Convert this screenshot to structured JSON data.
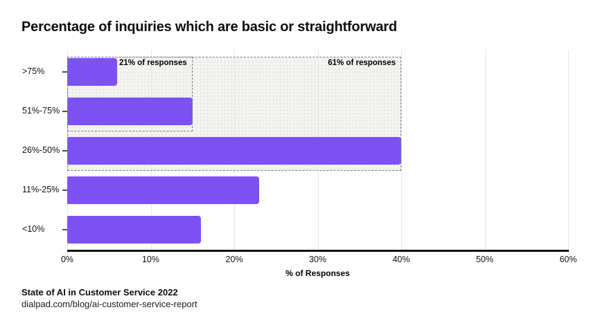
{
  "chart_data": {
    "type": "bar",
    "orientation": "horizontal",
    "title": "Percentage of inquiries which are basic or straightforward",
    "categories": [
      ">75%",
      "51%-75%",
      "26%-50%",
      "11%-25%",
      "<10%"
    ],
    "values": [
      6,
      15,
      40,
      23,
      16
    ],
    "xlabel": "% of Responses",
    "ylabel": "",
    "xlim": [
      0,
      60
    ],
    "x_tick_labels": [
      "0%",
      "10%",
      "20%",
      "30%",
      "40%",
      "50%",
      "60%"
    ],
    "grid": true,
    "legend": false,
    "bar_color": "#7C52F5",
    "annotation_box_fill": "#f3f3f2",
    "annotation_box_border": "#7d7d7d",
    "annotations": [
      {
        "label": "21% of responses",
        "value_pct": 21,
        "covers_categories": [
          ">75%",
          "51%-75%"
        ],
        "box_extent_pct": 15,
        "rows": 2
      },
      {
        "label": "61% of responses",
        "value_pct": 61,
        "covers_categories": [
          ">75%",
          "51%-75%",
          "26%-50%"
        ],
        "box_extent_pct": 40,
        "rows": 3
      }
    ]
  },
  "source": {
    "line1": "State of AI in Customer Service 2022",
    "line2": "dialpad.com/blog/ai-customer-service-report"
  }
}
